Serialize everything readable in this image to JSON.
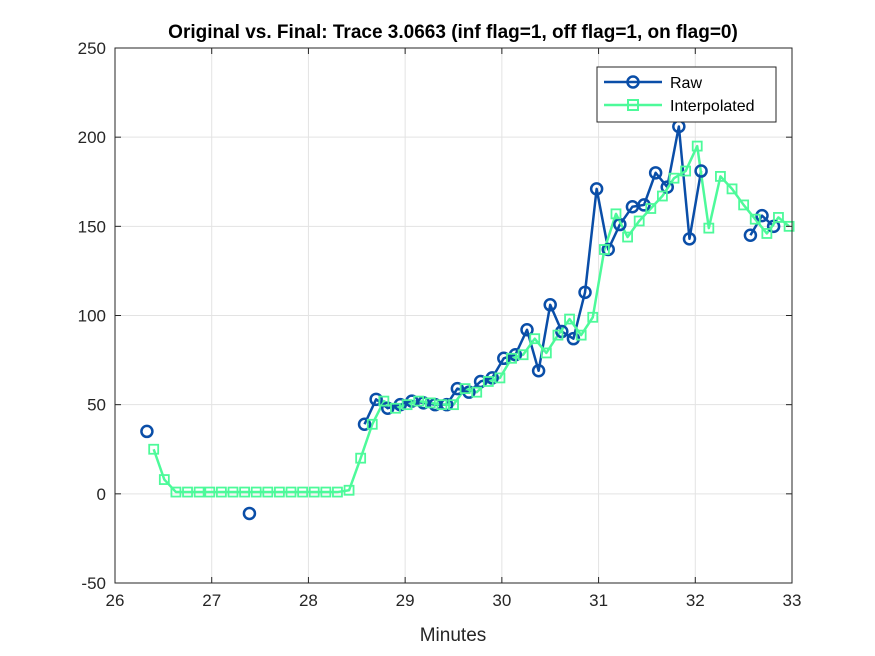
{
  "chart_data": {
    "type": "line",
    "title": "Original vs. Final: Trace 3.0663 (inf flag=1, off flag=1, on flag=0)",
    "xlabel": "Minutes",
    "ylabel": "",
    "xlim": [
      26,
      33
    ],
    "ylim": [
      -50,
      250
    ],
    "xticks": [
      "26",
      "27",
      "28",
      "29",
      "30",
      "31",
      "32",
      "33"
    ],
    "yticks": [
      "-50",
      "0",
      "50",
      "100",
      "150",
      "200",
      "250"
    ],
    "grid": true,
    "legend": {
      "placement": "top-right",
      "entries": [
        "Raw",
        "Interpolated"
      ]
    },
    "colors": {
      "raw": "#0a4ea8",
      "interpolated": "#4dfa9a",
      "axes": "#262626",
      "grid": "#e3e3e3"
    },
    "series": [
      {
        "name": "Raw",
        "marker": "circle",
        "segments": [
          [
            [
              26.33,
              35
            ]
          ],
          [
            [
              27.39,
              -11
            ]
          ],
          [
            [
              28.58,
              39
            ],
            [
              28.7,
              53
            ],
            [
              28.82,
              48
            ],
            [
              28.95,
              50
            ],
            [
              29.07,
              52
            ],
            [
              29.19,
              51
            ],
            [
              29.31,
              50
            ],
            [
              29.43,
              50
            ],
            [
              29.54,
              59
            ],
            [
              29.66,
              57
            ],
            [
              29.78,
              63
            ],
            [
              29.9,
              65
            ],
            [
              30.02,
              76
            ],
            [
              30.14,
              78
            ],
            [
              30.26,
              92
            ],
            [
              30.38,
              69
            ],
            [
              30.5,
              106
            ],
            [
              30.62,
              91
            ],
            [
              30.74,
              87
            ],
            [
              30.86,
              113
            ],
            [
              30.98,
              171
            ],
            [
              31.1,
              137
            ],
            [
              31.22,
              151
            ],
            [
              31.35,
              161
            ],
            [
              31.47,
              162
            ],
            [
              31.59,
              180
            ],
            [
              31.71,
              172
            ],
            [
              31.83,
              206
            ],
            [
              31.94,
              143
            ],
            [
              32.06,
              181
            ]
          ],
          [
            [
              32.57,
              145
            ],
            [
              32.69,
              156
            ],
            [
              32.81,
              150
            ]
          ]
        ]
      },
      {
        "name": "Interpolated",
        "marker": "square",
        "points": [
          [
            26.4,
            25
          ],
          [
            26.51,
            8
          ],
          [
            26.63,
            1
          ],
          [
            26.75,
            1
          ],
          [
            26.87,
            1
          ],
          [
            26.98,
            1
          ],
          [
            27.1,
            1
          ],
          [
            27.22,
            1
          ],
          [
            27.34,
            1
          ],
          [
            27.46,
            1
          ],
          [
            27.58,
            1
          ],
          [
            27.7,
            1
          ],
          [
            27.82,
            1
          ],
          [
            27.94,
            1
          ],
          [
            28.06,
            1
          ],
          [
            28.18,
            1
          ],
          [
            28.3,
            1
          ],
          [
            28.42,
            2
          ],
          [
            28.54,
            20
          ],
          [
            28.66,
            39
          ],
          [
            28.78,
            52
          ],
          [
            28.9,
            48
          ],
          [
            29.02,
            50
          ],
          [
            29.14,
            52
          ],
          [
            29.26,
            51
          ],
          [
            29.38,
            50
          ],
          [
            29.5,
            50
          ],
          [
            29.62,
            59
          ],
          [
            29.74,
            57
          ],
          [
            29.86,
            63
          ],
          [
            29.98,
            65
          ],
          [
            30.1,
            76
          ],
          [
            30.22,
            78
          ],
          [
            30.34,
            87
          ],
          [
            30.46,
            79
          ],
          [
            30.58,
            89
          ],
          [
            30.7,
            98
          ],
          [
            30.82,
            89
          ],
          [
            30.94,
            99
          ],
          [
            31.06,
            137
          ],
          [
            31.18,
            157
          ],
          [
            31.3,
            144
          ],
          [
            31.42,
            153
          ],
          [
            31.54,
            160
          ],
          [
            31.66,
            167
          ],
          [
            31.78,
            177
          ],
          [
            31.9,
            181
          ],
          [
            32.02,
            195
          ],
          [
            32.14,
            149
          ],
          [
            32.26,
            178
          ],
          [
            32.38,
            171
          ],
          [
            32.5,
            162
          ],
          [
            32.62,
            154
          ],
          [
            32.74,
            146
          ],
          [
            32.86,
            155
          ],
          [
            32.97,
            150
          ]
        ]
      }
    ]
  }
}
